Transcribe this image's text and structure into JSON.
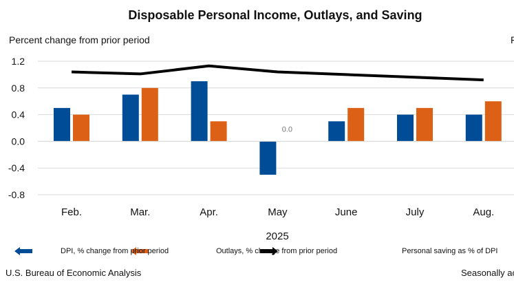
{
  "chart_data": {
    "type": "bar",
    "title": "Disposable Personal Income, Outlays, and Saving",
    "ylabel": "Percent change from prior period",
    "y2label": "P",
    "xlabel": "2025",
    "categories": [
      "Feb.",
      "Mar.",
      "Apr.",
      "May",
      "June",
      "July",
      "Aug."
    ],
    "ylim": [
      -0.8,
      1.2
    ],
    "yticks": [
      "1.2",
      "0.8",
      "0.4",
      "0.0",
      "-0.4",
      "-0.8"
    ],
    "y2lim": [
      -4,
      6
    ],
    "grid": true,
    "series": [
      {
        "name": "DPI, % change from prior period",
        "type": "bar",
        "color": "#004C97",
        "values": [
          0.5,
          0.7,
          0.9,
          -0.5,
          0.3,
          0.4,
          0.4
        ]
      },
      {
        "name": "Outlays, % change from prior period",
        "type": "bar",
        "color": "#DC6016",
        "values": [
          0.4,
          0.8,
          0.3,
          0.0,
          0.5,
          0.5,
          0.6
        ]
      },
      {
        "name": "Personal saving as % of DPI",
        "type": "line",
        "axis": "right",
        "color": "#000000",
        "values": [
          5.2,
          5.05,
          5.65,
          5.2,
          5.0,
          4.8,
          4.6
        ]
      }
    ],
    "annotations": [
      {
        "category": "May",
        "series": "Outlays, % change from prior period",
        "text": "0.0"
      }
    ],
    "legend_position": "bottom"
  },
  "footer": {
    "source": "U.S. Bureau of Economic Analysis",
    "note": "Seasonally ac"
  }
}
